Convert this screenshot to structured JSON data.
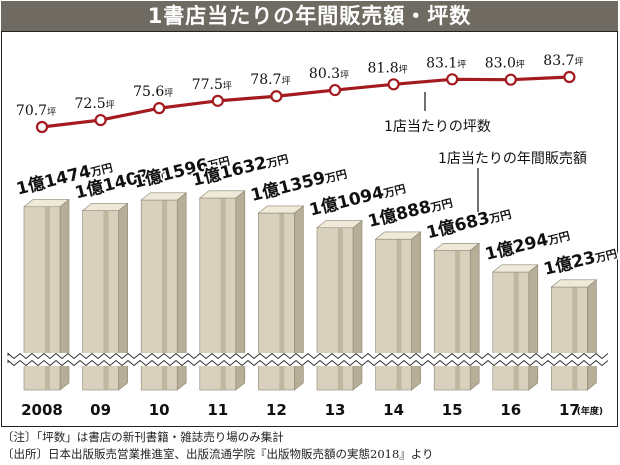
{
  "title": "1書店当たりの年間販売額・坪数",
  "notes": [
    "〔注〕「坪数」は書店の新刊書籍・雑誌売り場のみ集計",
    "〔出所〕日本出版販売営業推進室、出版流通学院『出版物販売額の実態2018』より"
  ],
  "colors": {
    "line": "#a31a1f",
    "title_bg": "#6f6b63",
    "bar_face": "#d9d1bd",
    "bar_side": "#b7ae98",
    "bar_top": "#efe9da"
  },
  "chart_data": {
    "type": "bar",
    "categories": [
      "2008",
      "09",
      "10",
      "11",
      "12",
      "13",
      "14",
      "15",
      "16",
      "17"
    ],
    "x_unit": "(年度)",
    "series": [
      {
        "name": "1店当たりの年間販売額",
        "values": [
          1.1474,
          1.1403,
          1.1596,
          1.1632,
          1.1359,
          1.1094,
          1.0888,
          1.0683,
          1.0294,
          1.0023
        ],
        "labels": [
          {
            "main": "1億1474",
            "unit": "万円"
          },
          {
            "main": "1億1403",
            "unit": "万円"
          },
          {
            "main": "1億1596",
            "unit": "万円"
          },
          {
            "main": "1億1632",
            "unit": "万円"
          },
          {
            "main": "1億1359",
            "unit": "万円"
          },
          {
            "main": "1億1094",
            "unit": "万円"
          },
          {
            "main": "1億888",
            "unit": "万円"
          },
          {
            "main": "1億683",
            "unit": "万円"
          },
          {
            "main": "1億294",
            "unit": "万円"
          },
          {
            "main": "1億23",
            "unit": "万円"
          }
        ]
      },
      {
        "name": "1店当たりの坪数",
        "type": "line",
        "values": [
          70.7,
          72.5,
          75.6,
          77.5,
          78.7,
          80.3,
          81.8,
          83.1,
          83.0,
          83.7
        ],
        "labels": [
          {
            "main": "70.7",
            "unit": "坪"
          },
          {
            "main": "72.5",
            "unit": "坪"
          },
          {
            "main": "75.6",
            "unit": "坪"
          },
          {
            "main": "77.5",
            "unit": "坪"
          },
          {
            "main": "78.7",
            "unit": "坪"
          },
          {
            "main": "80.3",
            "unit": "坪"
          },
          {
            "main": "81.8",
            "unit": "坪"
          },
          {
            "main": "83.1",
            "unit": "坪"
          },
          {
            "main": "83.0",
            "unit": "坪"
          },
          {
            "main": "83.7",
            "unit": "坪"
          }
        ]
      }
    ],
    "axis_break": true,
    "grid": false
  }
}
